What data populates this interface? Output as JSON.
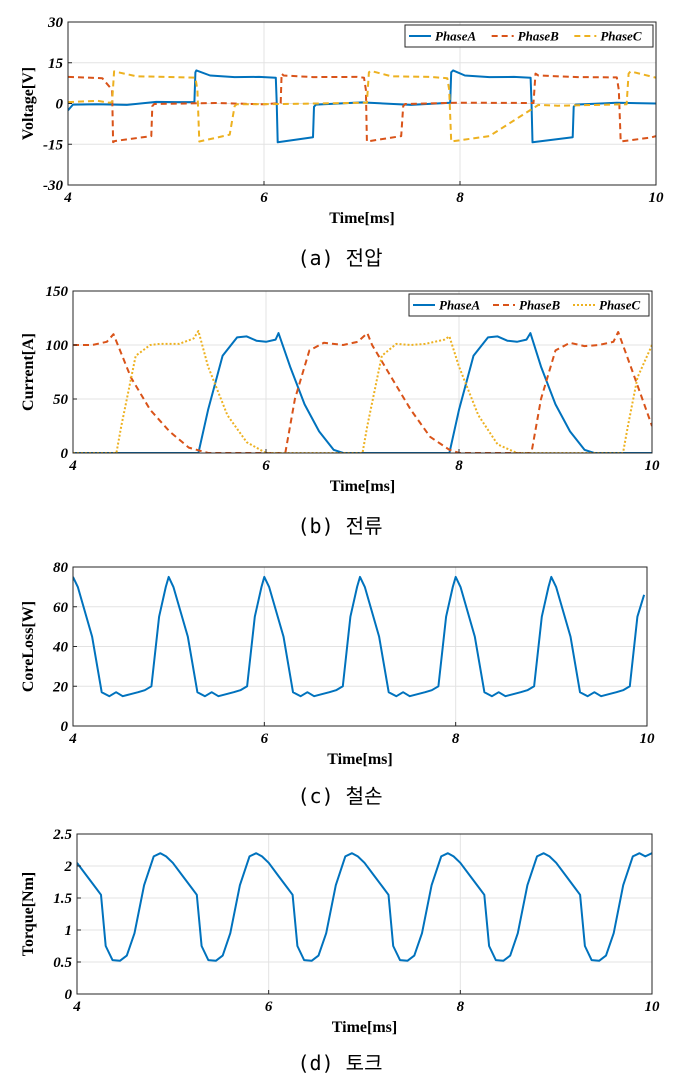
{
  "panels": [
    {
      "caption": "(a) 전압",
      "chart_data": {
        "type": "line",
        "xlabel": "Time[ms]",
        "ylabel": "Voltage[V]",
        "xlim": [
          4,
          10
        ],
        "ylim": [
          -30,
          30
        ],
        "xticks": [
          "4",
          "6",
          "8",
          "10"
        ],
        "yticks": [
          "-30",
          "-15",
          "0",
          "15",
          "30"
        ],
        "grid": true,
        "legend": "top-right",
        "series": [
          {
            "name": "PhaseA",
            "color": "#0072BD",
            "style": "solid",
            "x": [
              4.0,
              4.05,
              4.3,
              4.6,
              4.9,
              5.1,
              5.29,
              5.3,
              5.31,
              5.45,
              5.7,
              5.95,
              6.12,
              6.13,
              6.14,
              6.5,
              6.51,
              6.53,
              7.0,
              7.5,
              7.9,
              7.91,
              7.93,
              8.05,
              8.3,
              8.55,
              8.72,
              8.73,
              8.74,
              9.15,
              9.16,
              9.18,
              9.6,
              10.0
            ],
            "y": [
              -2.5,
              -0.4,
              -0.3,
              -0.5,
              0.6,
              0.5,
              0.5,
              11.5,
              12.2,
              10.3,
              9.7,
              9.8,
              9.5,
              0.5,
              -14.3,
              -12.4,
              -1.2,
              -0.4,
              0.4,
              -0.5,
              0.3,
              11.5,
              12.2,
              10.3,
              9.7,
              9.8,
              9.5,
              0.5,
              -14.3,
              -12.4,
              -1.2,
              -0.4,
              0.3,
              0.0
            ]
          },
          {
            "name": "PhaseB",
            "color": "#D95319",
            "style": "dashed",
            "x": [
              4.0,
              4.3,
              4.35,
              4.45,
              4.46,
              4.48,
              4.85,
              4.86,
              4.88,
              5.5,
              6.0,
              6.17,
              6.18,
              6.2,
              6.5,
              6.95,
              7.02,
              7.04,
              7.05,
              7.4,
              7.42,
              7.44,
              8.0,
              8.75,
              8.77,
              8.8,
              9.2,
              9.6,
              9.62,
              9.64,
              9.95,
              10.0
            ],
            "y": [
              9.8,
              9.4,
              9.3,
              5.0,
              -14.2,
              -13.8,
              -12.0,
              -1.0,
              -0.2,
              0.2,
              -0.3,
              0.2,
              11.0,
              10.3,
              9.7,
              9.8,
              9.5,
              5.0,
              -14.0,
              -12.0,
              -1.0,
              -0.2,
              0.3,
              0.2,
              11.0,
              10.3,
              9.7,
              9.6,
              5.0,
              -14.0,
              -12.5,
              -12.0
            ]
          },
          {
            "name": "PhaseC",
            "color": "#EDB120",
            "style": "dashed",
            "x": [
              4.0,
              4.3,
              4.42,
              4.45,
              4.47,
              4.7,
              5.0,
              5.3,
              5.32,
              5.34,
              5.65,
              5.7,
              5.72,
              6.2,
              7.05,
              7.07,
              7.09,
              7.3,
              7.7,
              7.87,
              7.89,
              7.91,
              8.3,
              8.8,
              9.0,
              9.7,
              9.72,
              9.74,
              10.0
            ],
            "y": [
              0.5,
              1.0,
              0.3,
              0.5,
              11.8,
              10.0,
              9.8,
              9.5,
              5.0,
              -14.0,
              -11.5,
              -1.0,
              -0.3,
              -0.2,
              0.3,
              11.5,
              12.0,
              10.0,
              9.8,
              9.3,
              5.0,
              -14.0,
              -12.0,
              -0.5,
              -0.8,
              -0.3,
              11.0,
              11.8,
              9.5
            ]
          }
        ]
      }
    },
    {
      "caption": "(b) 전류",
      "chart_data": {
        "type": "line",
        "xlabel": "Time[ms]",
        "ylabel": "Current[A]",
        "xlim": [
          4,
          10
        ],
        "ylim": [
          0,
          150
        ],
        "xticks": [
          "4",
          "6",
          "8",
          "10"
        ],
        "yticks": [
          "0",
          "50",
          "100",
          "150"
        ],
        "grid": true,
        "legend": "top-right",
        "series": [
          {
            "name": "PhaseA",
            "color": "#0072BD",
            "style": "solid",
            "x": [
              4.0,
              5.3,
              5.4,
              5.55,
              5.7,
              5.8,
              5.9,
              6.0,
              6.1,
              6.13,
              6.25,
              6.4,
              6.55,
              6.7,
              6.8,
              7.9,
              8.0,
              8.15,
              8.3,
              8.4,
              8.5,
              8.6,
              8.7,
              8.74,
              8.85,
              9.0,
              9.15,
              9.3,
              9.4,
              10.0
            ],
            "y": [
              0,
              0,
              40,
              90,
              107,
              108,
              104,
              103,
              105,
              111,
              80,
              45,
              20,
              3,
              0,
              0,
              40,
              90,
              107,
              108,
              104,
              103,
              105,
              111,
              80,
              45,
              20,
              3,
              0,
              0
            ]
          },
          {
            "name": "PhaseB",
            "color": "#D95319",
            "style": "dashed",
            "x": [
              4.0,
              4.2,
              4.35,
              4.42,
              4.6,
              4.8,
              5.0,
              5.2,
              5.4,
              6.2,
              6.3,
              6.45,
              6.6,
              6.7,
              6.8,
              6.95,
              7.05,
              7.1,
              7.3,
              7.5,
              7.7,
              7.9,
              8.0,
              8.75,
              8.85,
              9.0,
              9.15,
              9.3,
              9.45,
              9.6,
              9.65,
              9.8,
              10.0
            ],
            "y": [
              100,
              100,
              103,
              110,
              70,
              40,
              20,
              5,
              0,
              0,
              50,
              95,
              102,
              101,
              100,
              103,
              111,
              100,
              70,
              40,
              15,
              3,
              0,
              0,
              50,
              95,
              102,
              99,
              100,
              103,
              112,
              75,
              25
            ]
          },
          {
            "name": "PhaseC",
            "color": "#EDB120",
            "style": "dotted",
            "x": [
              4.0,
              4.45,
              4.5,
              4.65,
              4.8,
              4.9,
              5.1,
              5.25,
              5.3,
              5.4,
              5.6,
              5.8,
              6.0,
              7.0,
              7.05,
              7.2,
              7.35,
              7.5,
              7.65,
              7.85,
              7.9,
              8.0,
              8.2,
              8.4,
              8.6,
              9.7,
              9.75,
              9.85,
              10.0
            ],
            "y": [
              0,
              0,
              25,
              90,
              100,
              101,
              101,
              106,
              113,
              80,
              35,
              10,
              0,
              0,
              25,
              90,
              101,
              100,
              101,
              105,
              108,
              80,
              35,
              8,
              0,
              0,
              25,
              70,
              100
            ]
          }
        ]
      }
    },
    {
      "caption": "(c) 철손",
      "chart_data": {
        "type": "line",
        "xlabel": "Time[ms]",
        "ylabel": "CoreLoss[W]",
        "xlim": [
          4,
          10
        ],
        "ylim": [
          0,
          80
        ],
        "xticks": [
          "4",
          "6",
          "8",
          "10"
        ],
        "yticks": [
          "0",
          "20",
          "40",
          "60",
          "80"
        ],
        "grid": true,
        "series": [
          {
            "name": "",
            "color": "#0072BD",
            "style": "solid",
            "x": [
              4.0,
              4.05,
              4.2,
              4.3,
              4.38,
              4.45,
              4.52,
              4.6,
              4.68,
              4.75,
              4.82,
              4.9,
              4.97,
              5.0,
              5.05,
              5.2,
              5.3,
              5.38,
              5.45,
              5.52,
              5.6,
              5.68,
              5.75,
              5.82,
              5.9,
              5.97,
              6.0,
              6.05,
              6.2,
              6.3,
              6.38,
              6.45,
              6.52,
              6.6,
              6.68,
              6.75,
              6.82,
              6.9,
              6.97,
              7.0,
              7.05,
              7.2,
              7.3,
              7.38,
              7.45,
              7.52,
              7.6,
              7.68,
              7.75,
              7.82,
              7.9,
              7.97,
              8.0,
              8.05,
              8.2,
              8.3,
              8.38,
              8.45,
              8.52,
              8.6,
              8.68,
              8.75,
              8.82,
              8.9,
              8.97,
              9.0,
              9.05,
              9.2,
              9.3,
              9.38,
              9.45,
              9.52,
              9.6,
              9.68,
              9.75,
              9.82,
              9.9,
              9.97
            ],
            "y": [
              75,
              70,
              45,
              17,
              15,
              17,
              15,
              16,
              17,
              18,
              20,
              55,
              70,
              75,
              70,
              45,
              17,
              15,
              17,
              15,
              16,
              17,
              18,
              20,
              55,
              70,
              75,
              70,
              45,
              17,
              15,
              17,
              15,
              16,
              17,
              18,
              20,
              55,
              70,
              75,
              70,
              45,
              17,
              15,
              17,
              15,
              16,
              17,
              18,
              20,
              55,
              70,
              75,
              70,
              45,
              17,
              15,
              17,
              15,
              16,
              17,
              18,
              20,
              55,
              70,
              75,
              70,
              45,
              17,
              15,
              17,
              15,
              16,
              17,
              18,
              20,
              55,
              66
            ]
          }
        ]
      }
    },
    {
      "caption": "(d) 토크",
      "chart_data": {
        "type": "line",
        "xlabel": "Time[ms]",
        "ylabel": "Torque[Nm]",
        "xlim": [
          4,
          10
        ],
        "ylim": [
          0,
          2.5
        ],
        "xticks": [
          "4",
          "6",
          "8",
          "10"
        ],
        "yticks": [
          "0",
          "0.5",
          "1",
          "1.5",
          "2",
          "2.5"
        ],
        "grid": true,
        "series": [
          {
            "name": "",
            "color": "#0072BD",
            "style": "solid",
            "x": [
              4.0,
              4.1,
              4.2,
              4.25,
              4.3,
              4.37,
              4.45,
              4.52,
              4.6,
              4.7,
              4.8,
              4.87,
              4.93,
              5.0,
              5.1,
              5.2,
              5.25,
              5.3,
              5.37,
              5.45,
              5.52,
              5.6,
              5.7,
              5.8,
              5.87,
              5.93,
              6.0,
              6.1,
              6.2,
              6.25,
              6.3,
              6.37,
              6.45,
              6.52,
              6.6,
              6.7,
              6.8,
              6.87,
              6.93,
              7.0,
              7.1,
              7.2,
              7.25,
              7.3,
              7.37,
              7.45,
              7.52,
              7.6,
              7.7,
              7.8,
              7.87,
              7.93,
              8.0,
              8.1,
              8.2,
              8.25,
              8.3,
              8.37,
              8.45,
              8.52,
              8.6,
              8.7,
              8.8,
              8.87,
              8.93,
              9.0,
              9.1,
              9.2,
              9.25,
              9.3,
              9.37,
              9.45,
              9.52,
              9.6,
              9.7,
              9.8,
              9.87,
              9.93,
              10.0
            ],
            "y": [
              2.05,
              1.85,
              1.65,
              1.55,
              0.75,
              0.53,
              0.52,
              0.6,
              0.95,
              1.7,
              2.15,
              2.2,
              2.15,
              2.05,
              1.85,
              1.65,
              1.55,
              0.75,
              0.53,
              0.52,
              0.6,
              0.95,
              1.7,
              2.15,
              2.2,
              2.15,
              2.05,
              1.85,
              1.65,
              1.55,
              0.75,
              0.53,
              0.52,
              0.6,
              0.95,
              1.7,
              2.15,
              2.2,
              2.15,
              2.05,
              1.85,
              1.65,
              1.55,
              0.75,
              0.53,
              0.52,
              0.6,
              0.95,
              1.7,
              2.15,
              2.2,
              2.15,
              2.05,
              1.85,
              1.65,
              1.55,
              0.75,
              0.53,
              0.52,
              0.6,
              0.95,
              1.7,
              2.15,
              2.2,
              2.15,
              2.05,
              1.85,
              1.65,
              1.55,
              0.75,
              0.53,
              0.52,
              0.6,
              0.95,
              1.7,
              2.15,
              2.2,
              2.15,
              2.2
            ]
          }
        ]
      }
    }
  ]
}
